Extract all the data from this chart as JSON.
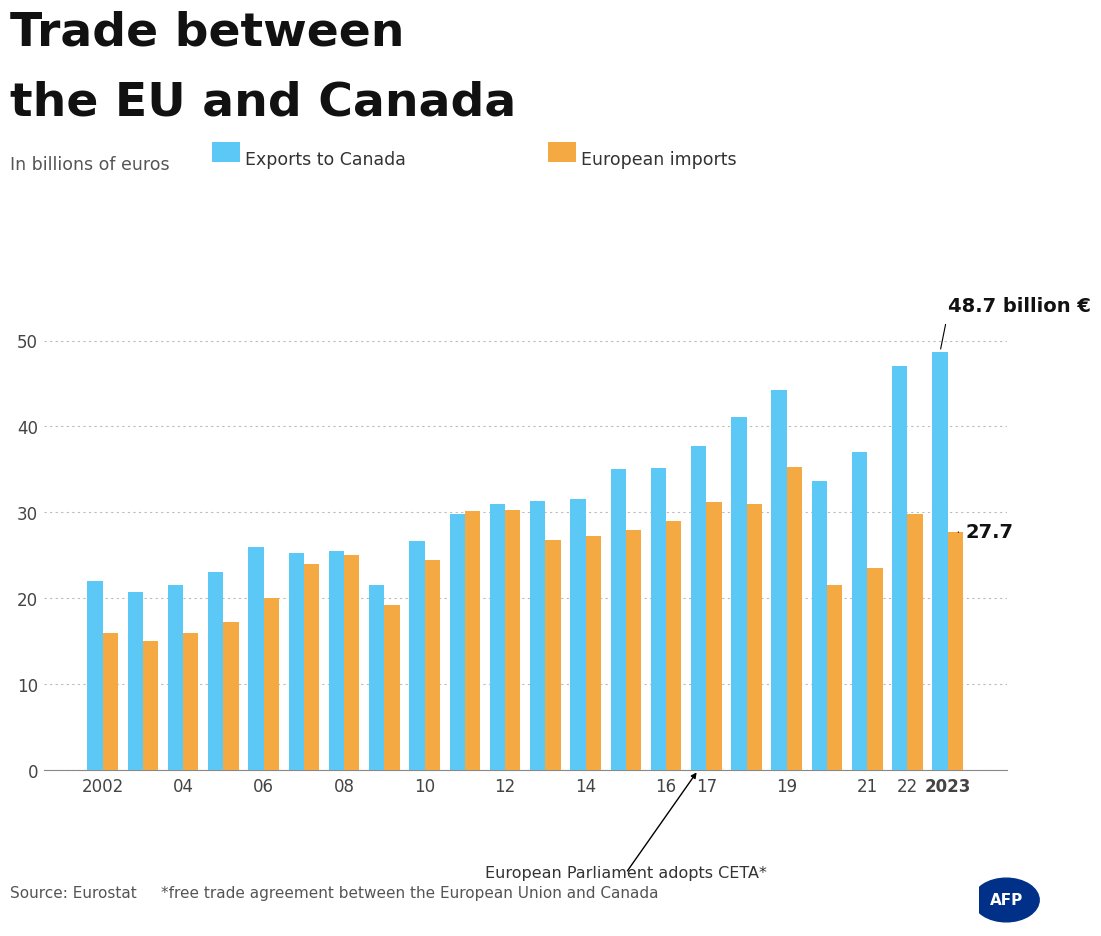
{
  "years": [
    2002,
    2003,
    2004,
    2005,
    2006,
    2007,
    2008,
    2009,
    2010,
    2011,
    2012,
    2013,
    2014,
    2015,
    2016,
    2017,
    2018,
    2019,
    2020,
    2021,
    2022,
    2023
  ],
  "exports": [
    22.0,
    20.7,
    21.5,
    23.0,
    26.0,
    25.3,
    25.5,
    21.5,
    26.7,
    29.8,
    31.0,
    31.3,
    31.5,
    35.0,
    35.2,
    37.7,
    41.1,
    44.2,
    33.6,
    37.0,
    47.0,
    48.7
  ],
  "imports": [
    16.0,
    15.0,
    16.0,
    17.2,
    20.0,
    24.0,
    25.0,
    19.2,
    24.5,
    30.2,
    30.3,
    26.8,
    27.2,
    28.0,
    29.0,
    31.2,
    31.0,
    35.3,
    21.5,
    23.5,
    29.8,
    27.7
  ],
  "exports_color": "#5BC8F5",
  "imports_color": "#F5A942",
  "exports_label": "Exports to Canada",
  "imports_label": "European imports",
  "title_line1": "Trade between",
  "title_line2": "the EU and Canada",
  "subtitle": "In billions of euros",
  "ylim": [
    0,
    55
  ],
  "yticks": [
    0,
    10,
    20,
    30,
    40,
    50
  ],
  "xlabel_annotation": "European Parliament adopts CETA*",
  "annotation_year": 2017,
  "annotation_exports_value": "48.7 billion €",
  "annotation_imports_value": "27.7",
  "source_text": "Source: Eurostat",
  "footnote_text": "*free trade agreement between the European Union and Canada",
  "bg_color": "#FFFFFF",
  "grid_color": "#BBBBBB",
  "title_color": "#111111",
  "x_tick_labels": [
    "2002",
    "",
    "04",
    "",
    "06",
    "",
    "08",
    "",
    "10",
    "",
    "12",
    "",
    "14",
    "",
    "16",
    "17",
    "",
    "19",
    "",
    "21",
    "22",
    "2023"
  ]
}
